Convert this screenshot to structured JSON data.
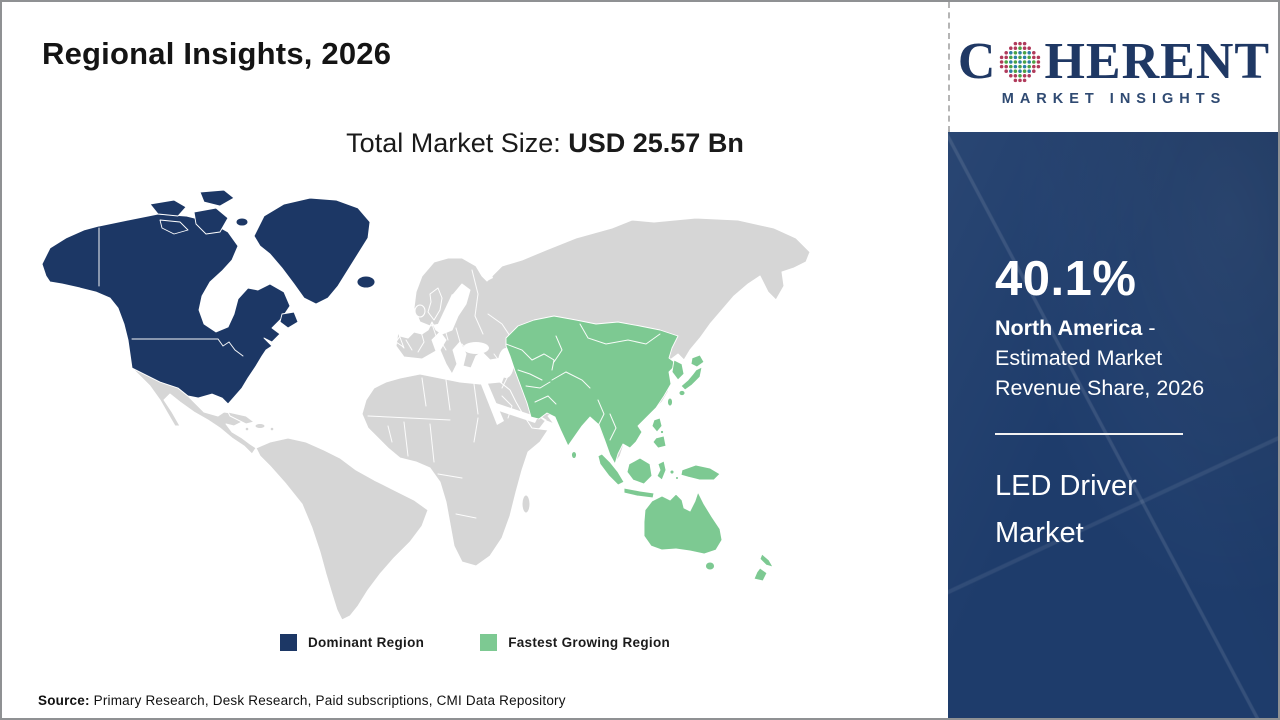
{
  "page": {
    "title": "Regional Insights, 2026",
    "total_market_label": "Total Market Size: ",
    "total_market_value": "USD 25.57 Bn",
    "source_label": "Source:",
    "source_text": " Primary Research, Desk Research, Paid subscriptions, CMI Data Repository"
  },
  "logo": {
    "name_first_letter": "C",
    "name_rest": "HERENT",
    "tagline": "MARKET INSIGHTS"
  },
  "map": {
    "legend": [
      {
        "label": "Dominant Region",
        "color": "#1c3765"
      },
      {
        "label": "Fastest Growing Region",
        "color": "#7dc992"
      }
    ],
    "regions": [
      {
        "name": "North America",
        "status": "Dominant Region",
        "color": "#1c3765"
      },
      {
        "name": "Asia Pacific",
        "status": "Fastest Growing Region",
        "color": "#7dc992"
      },
      {
        "name": "Rest of World",
        "status": "Not highlighted",
        "color": "#d6d6d6"
      }
    ]
  },
  "sidebar": {
    "stat_value": "40.1%",
    "stat_region": "North America",
    "stat_suffix": " - Estimated Market Revenue Share, 2026",
    "market_name": "LED Driver Market",
    "background_color": "#1e3c6b"
  }
}
